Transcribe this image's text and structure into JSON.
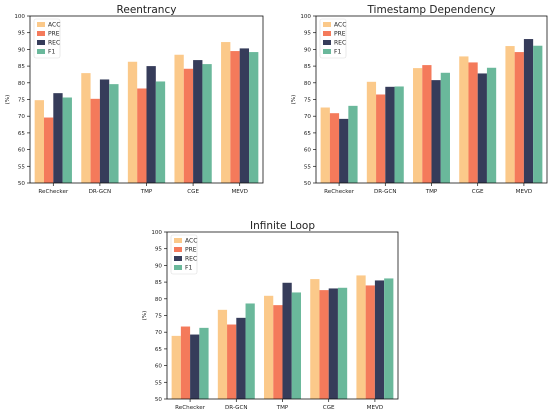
{
  "chart_data": [
    {
      "type": "bar",
      "title": "Reentrancy",
      "ylabel": "(%)",
      "ylim": [
        50,
        100
      ],
      "yticks": [
        "50",
        "55",
        "60",
        "65",
        "70",
        "75",
        "80",
        "85",
        "90",
        "95",
        "100"
      ],
      "categories": [
        "ReChecker",
        "DR-GCN",
        "TMP",
        "CGE",
        "MEVD"
      ],
      "legend_position": "top-left",
      "series": [
        {
          "name": "ACC",
          "values": [
            74.8,
            82.9,
            86.3,
            88.4,
            92.2
          ]
        },
        {
          "name": "PRE",
          "values": [
            69.6,
            75.2,
            78.3,
            84.2,
            89.5
          ]
        },
        {
          "name": "REC",
          "values": [
            76.9,
            81.0,
            85.0,
            86.8,
            90.3
          ]
        },
        {
          "name": "F1",
          "values": [
            75.6,
            79.6,
            80.4,
            85.6,
            89.2
          ]
        }
      ]
    },
    {
      "type": "bar",
      "title": "Timestamp Dependency",
      "ylabel": "(%)",
      "ylim": [
        50,
        100
      ],
      "yticks": [
        "50",
        "55",
        "60",
        "65",
        "70",
        "75",
        "80",
        "85",
        "90",
        "95",
        "100"
      ],
      "categories": [
        "ReChecker",
        "DR-GCN",
        "TMP",
        "CGE",
        "MEVD"
      ],
      "legend_position": "top-left",
      "series": [
        {
          "name": "ACC",
          "values": [
            72.6,
            80.3,
            84.4,
            87.9,
            91.0
          ]
        },
        {
          "name": "PRE",
          "values": [
            70.9,
            76.5,
            85.3,
            86.1,
            89.2
          ]
        },
        {
          "name": "REC",
          "values": [
            69.2,
            78.8,
            80.8,
            82.8,
            93.1
          ]
        },
        {
          "name": "F1",
          "values": [
            73.1,
            78.9,
            83.0,
            84.5,
            91.1
          ]
        }
      ]
    },
    {
      "type": "bar",
      "title": "Infinite Loop",
      "ylabel": "(%)",
      "ylim": [
        50,
        100
      ],
      "yticks": [
        "50",
        "55",
        "60",
        "65",
        "70",
        "75",
        "80",
        "85",
        "90",
        "95",
        "100"
      ],
      "categories": [
        "ReChecker",
        "DR-GCN",
        "TMP",
        "CGE",
        "MEVD"
      ],
      "legend_position": "top-left",
      "series": [
        {
          "name": "ACC",
          "values": [
            68.9,
            76.7,
            80.9,
            85.9,
            87.0
          ]
        },
        {
          "name": "PRE",
          "values": [
            71.7,
            72.3,
            78.1,
            82.6,
            84.0
          ]
        },
        {
          "name": "REC",
          "values": [
            69.3,
            74.3,
            84.8,
            83.1,
            85.5
          ]
        },
        {
          "name": "F1",
          "values": [
            71.3,
            78.6,
            81.9,
            83.3,
            86.1
          ]
        }
      ]
    }
  ],
  "series_colors": [
    "#fbc98a",
    "#f47a5b",
    "#363c5a",
    "#6ab89b"
  ]
}
